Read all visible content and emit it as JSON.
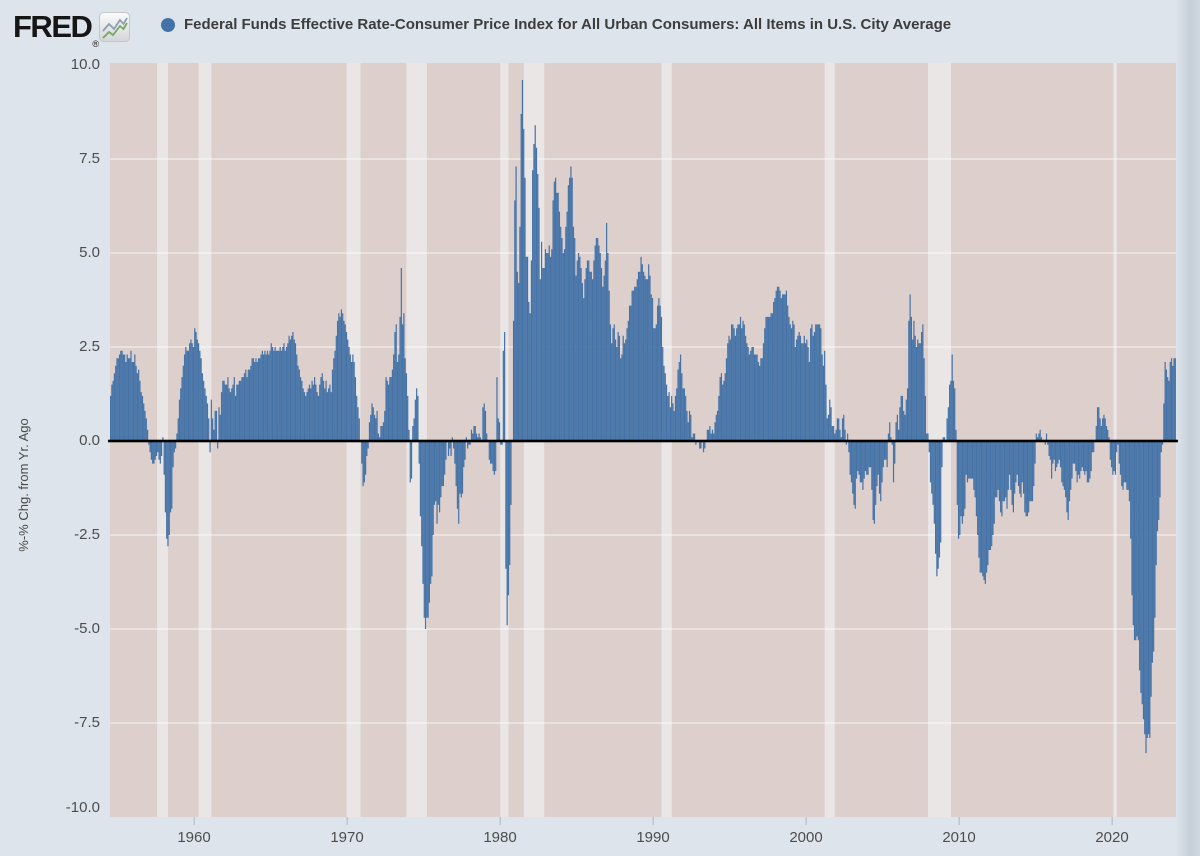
{
  "header": {
    "logo_text": "FRED",
    "registered_mark": "®",
    "series_title": "Federal Funds Effective Rate-Consumer Price Index for All Urban Consumers: All Items in U.S. City Average",
    "legend_dot_color": "#4573a7"
  },
  "colors": {
    "page_bg": "#dde4eb",
    "plot_bg": "#ddd0cc",
    "recession_band": "#e9e6e5",
    "gridline": "rgba(255,255,255,0.5)",
    "bar": "#4573a7",
    "zero_line": "#000000",
    "axis_text": "#4d4d4d",
    "tick_mark": "#b4bec8",
    "logo_line_gray": "#8ba0b3",
    "logo_line_green": "#74a85e"
  },
  "y_axis": {
    "title": "%-% Chg. from Yr. Ago",
    "tick_labels": [
      "10.0",
      "7.5",
      "5.0",
      "2.5",
      "0.0",
      "-2.5",
      "-5.0",
      "-7.5",
      "-10.0"
    ],
    "tick_values": [
      10,
      7.5,
      5,
      2.5,
      0,
      -2.5,
      -5,
      -7.5,
      -10
    ]
  },
  "x_axis": {
    "tick_labels": [
      "1960",
      "1970",
      "1980",
      "1990",
      "2000",
      "2010",
      "2020"
    ],
    "tick_years": [
      1960,
      1970,
      1980,
      1990,
      2000,
      2010,
      2020
    ]
  },
  "chart_data": {
    "type": "bar",
    "title": "Federal Funds Effective Rate-Consumer Price Index for All Urban Consumers: All Items in U.S. City Average",
    "ylabel": "%-% Chg. from Yr. Ago",
    "xlabel": "",
    "ylim": [
      -10,
      10
    ],
    "grid": "horizontal",
    "legend_position": "top-left",
    "frequency": "monthly",
    "start_date": "1954-07",
    "end_date": "2024-02",
    "zero_line": true,
    "recessions": [
      [
        1957.58,
        1958.29
      ],
      [
        1960.29,
        1961.12
      ],
      [
        1969.96,
        1970.87
      ],
      [
        1973.87,
        1975.21
      ],
      [
        1980.0,
        1980.54
      ],
      [
        1981.54,
        1982.87
      ],
      [
        1990.54,
        1991.21
      ],
      [
        2001.21,
        2001.87
      ],
      [
        2007.96,
        2009.46
      ],
      [
        2020.08,
        2020.29
      ]
    ],
    "values": [
      1.2,
      1.5,
      1.6,
      1.8,
      2.0,
      2.2,
      2.2,
      2.3,
      2.4,
      2.4,
      2.3,
      2.3,
      2.1,
      2.3,
      2.2,
      2.2,
      2.4,
      2.1,
      2.1,
      2.3,
      2.0,
      1.8,
      1.9,
      1.6,
      1.3,
      1.2,
      1.0,
      0.8,
      0.6,
      0.3,
      -0.1,
      -0.3,
      -0.5,
      -0.6,
      -0.6,
      -0.5,
      -0.4,
      -0.3,
      -0.5,
      -0.6,
      -0.4,
      0.1,
      -0.9,
      -1.9,
      -2.6,
      -2.8,
      -2.5,
      -1.9,
      -1.8,
      -0.7,
      -0.3,
      -0.2,
      0.2,
      0.6,
      1.1,
      1.4,
      1.7,
      2.0,
      2.3,
      2.5,
      2.4,
      2.4,
      2.6,
      2.7,
      2.6,
      2.5,
      3.0,
      2.9,
      2.7,
      2.6,
      2.4,
      2.2,
      1.8,
      1.6,
      1.4,
      1.2,
      1.0,
      0.6,
      -0.3,
      1.1,
      0.6,
      0.3,
      0.8,
      0.8,
      -0.2,
      0.9,
      0.7,
      1.3,
      1.6,
      1.6,
      1.5,
      1.5,
      1.7,
      1.4,
      1.3,
      1.4,
      1.5,
      1.7,
      1.2,
      1.5,
      1.5,
      1.6,
      1.6,
      1.7,
      1.7,
      1.8,
      1.9,
      1.7,
      1.9,
      1.9,
      2.0,
      2.2,
      2.2,
      2.1,
      2.2,
      2.1,
      2.2,
      2.2,
      2.3,
      2.4,
      2.3,
      2.4,
      2.3,
      2.4,
      2.3,
      2.4,
      2.6,
      2.5,
      2.4,
      2.5,
      2.4,
      2.4,
      2.4,
      2.5,
      2.4,
      2.5,
      2.6,
      2.4,
      2.5,
      2.6,
      2.8,
      2.7,
      2.8,
      2.9,
      2.7,
      2.6,
      2.3,
      2.0,
      1.9,
      1.7,
      1.6,
      1.4,
      1.3,
      1.2,
      1.3,
      1.4,
      1.5,
      1.4,
      1.6,
      1.5,
      1.7,
      1.5,
      1.3,
      1.2,
      1.5,
      1.7,
      1.8,
      1.6,
      1.4,
      1.6,
      1.3,
      1.4,
      1.5,
      1.3,
      1.9,
      2.2,
      2.4,
      2.8,
      3.2,
      3.4,
      3.3,
      3.5,
      3.4,
      3.2,
      3.1,
      2.9,
      2.7,
      2.5,
      2.3,
      2.1,
      2.3,
      2.1,
      1.7,
      1.2,
      0.9,
      0.6,
      0.0,
      -0.6,
      -1.2,
      -1.1,
      -0.9,
      -0.4,
      -0.2,
      0.5,
      0.7,
      1.0,
      0.9,
      0.7,
      0.6,
      0.8,
      0.2,
      0.1,
      0.4,
      0.4,
      0.5,
      0.8,
      1.7,
      1.6,
      1.5,
      1.7,
      1.7,
      1.9,
      2.3,
      2.9,
      3.1,
      2.1,
      2.3,
      3.3,
      4.6,
      3.1,
      3.4,
      2.2,
      1.8,
      1.2,
      0.3,
      -1.1,
      -1.0,
      0.4,
      0.6,
      1.1,
      1.4,
      1.2,
      -0.6,
      -2.0,
      -2.8,
      -3.8,
      -4.7,
      -5.0,
      -4.7,
      -4.7,
      -4.3,
      -3.8,
      -3.6,
      -2.5,
      -1.7,
      -1.6,
      -2.2,
      -1.7,
      -1.9,
      -1.5,
      -1.2,
      -1.2,
      -0.9,
      -0.5,
      0.0,
      -0.4,
      -0.2,
      -0.4,
      0.1,
      -0.2,
      -0.6,
      -1.2,
      -1.8,
      -2.2,
      -1.4,
      -1.5,
      -1.4,
      -0.7,
      -0.5,
      0.1,
      -0.2,
      -0.1,
      -0.1,
      0.3,
      0.2,
      0.4,
      0.4,
      0.2,
      0.1,
      0.2,
      0.1,
      0.0,
      0.9,
      1.0,
      0.8,
      0.2,
      0.0,
      -0.5,
      -0.6,
      -0.6,
      -0.8,
      -0.9,
      -0.8,
      1.7,
      0.6,
      0.5,
      -0.1,
      -0.1,
      2.4,
      2.9,
      -3.4,
      -4.9,
      -4.1,
      -3.3,
      -1.7,
      0.0,
      3.2,
      6.4,
      7.3,
      4.5,
      4.2,
      5.7,
      8.7,
      9.6,
      8.3,
      7.0,
      4.9,
      4.9,
      3.7,
      3.4,
      4.8,
      7.2,
      7.9,
      8.4,
      7.8,
      7.1,
      6.2,
      4.3,
      5.3,
      4.6,
      4.6,
      5.1,
      5.0,
      5.0,
      5.2,
      4.9,
      5.1,
      6.4,
      6.9,
      7.0,
      6.6,
      6.6,
      6.1,
      5.7,
      5.4,
      5.0,
      5.1,
      5.7,
      6.1,
      6.8,
      7.0,
      7.3,
      7.0,
      5.7,
      5.4,
      4.4,
      4.8,
      5.0,
      4.9,
      4.6,
      4.2,
      3.8,
      4.3,
      4.6,
      4.8,
      4.8,
      4.5,
      4.5,
      4.3,
      4.8,
      5.2,
      5.4,
      5.4,
      5.2,
      5.0,
      4.6,
      4.1,
      4.4,
      4.8,
      5.8,
      5.0,
      4.0,
      3.1,
      2.6,
      3.0,
      3.1,
      2.7,
      2.5,
      2.9,
      2.8,
      2.2,
      2.3,
      2.8,
      2.6,
      2.7,
      3.0,
      3.2,
      3.6,
      3.6,
      4.0,
      4.0,
      4.1,
      4.1,
      4.3,
      4.5,
      4.5,
      4.9,
      4.7,
      4.5,
      4.4,
      4.3,
      4.3,
      4.7,
      4.4,
      3.9,
      3.8,
      3.0,
      3.0,
      3.1,
      3.6,
      3.8,
      3.6,
      3.3,
      2.5,
      2.0,
      1.8,
      1.5,
      1.2,
      1.3,
      0.9,
      1.2,
      1.0,
      0.8,
      1.2,
      1.4,
      1.9,
      2.1,
      2.3,
      1.8,
      1.4,
      1.4,
      1.2,
      0.8,
      0.5,
      0.8,
      0.7,
      0.1,
      0.2,
      0.2,
      -0.1,
      0.0,
      0.0,
      -0.2,
      -0.2,
      0.0,
      -0.3,
      -0.2,
      0.0,
      0.3,
      0.3,
      0.4,
      0.2,
      0.3,
      0.2,
      0.5,
      0.7,
      0.8,
      1.2,
      1.7,
      1.8,
      1.5,
      1.6,
      1.8,
      2.2,
      2.6,
      2.8,
      2.7,
      3.1,
      3.1,
      3.0,
      2.8,
      3.0,
      3.1,
      3.1,
      3.3,
      3.0,
      3.2,
      3.1,
      2.8,
      2.6,
      2.5,
      2.3,
      2.4,
      2.5,
      2.5,
      2.3,
      2.3,
      2.3,
      2.1,
      2.0,
      2.2,
      2.2,
      2.6,
      3.0,
      3.3,
      3.3,
      3.3,
      3.3,
      3.4,
      3.4,
      3.7,
      3.8,
      4.0,
      4.1,
      4.1,
      4.0,
      3.8,
      3.9,
      3.9,
      3.9,
      4.0,
      3.6,
      3.3,
      3.1,
      3.0,
      3.2,
      3.1,
      2.5,
      2.7,
      2.8,
      2.9,
      2.8,
      2.6,
      2.6,
      2.8,
      2.6,
      2.7,
      2.5,
      2.1,
      3.0,
      3.1,
      2.8,
      2.9,
      3.1,
      3.1,
      3.1,
      3.1,
      3.0,
      2.3,
      2.0,
      2.4,
      1.5,
      0.6,
      0.7,
      1.1,
      0.9,
      0.4,
      0.4,
      0.2,
      0.3,
      0.6,
      0.6,
      0.3,
      0.1,
      0.6,
      0.7,
      0.3,
      -0.1,
      0.2,
      -0.3,
      -0.9,
      -1.1,
      -1.4,
      -1.7,
      -1.8,
      -1.0,
      -0.8,
      -0.9,
      -1.1,
      -1.1,
      -1.3,
      -1.0,
      -0.8,
      -0.9,
      -0.9,
      -0.7,
      -0.7,
      -1.3,
      -2.1,
      -2.2,
      -1.7,
      -1.2,
      -0.9,
      -1.4,
      -1.6,
      -1.1,
      -0.7,
      -0.5,
      -0.5,
      -0.7,
      0.2,
      0.5,
      0.1,
      -0.1,
      -1.1,
      -0.6,
      0.5,
      0.7,
      0.3,
      0.9,
      1.2,
      1.2,
      0.8,
      0.7,
      1.1,
      1.4,
      3.2,
      3.9,
      3.3,
      2.7,
      3.2,
      2.8,
      2.5,
      2.7,
      2.6,
      2.6,
      2.9,
      3.1,
      2.2,
      1.2,
      0.2,
      0.2,
      -0.3,
      -1.1,
      -1.4,
      -1.7,
      -2.2,
      -3.0,
      -3.6,
      -3.4,
      -3.1,
      -2.7,
      -0.7,
      0.1,
      0.1,
      0.0,
      0.6,
      0.9,
      1.5,
      1.6,
      2.3,
      1.6,
      1.4,
      0.3,
      -1.7,
      -2.6,
      -2.5,
      -2.0,
      -2.2,
      -2.0,
      -1.8,
      -0.9,
      -1.1,
      -1.0,
      -1.0,
      -1.0,
      -1.0,
      -1.3,
      -1.5,
      -2.0,
      -2.5,
      -3.1,
      -3.5,
      -3.5,
      -3.6,
      -3.7,
      -3.8,
      -3.5,
      -3.3,
      -2.9,
      -2.9,
      -2.8,
      -2.5,
      -2.2,
      -1.5,
      -1.5,
      -1.3,
      -1.6,
      -1.9,
      -2.0,
      -1.6,
      -1.6,
      -1.5,
      -1.8,
      -1.3,
      -0.9,
      -1.3,
      -1.7,
      -1.9,
      -1.4,
      -1.1,
      -0.9,
      -1.2,
      -1.4,
      -1.5,
      -1.1,
      -1.4,
      -1.9,
      -2.0,
      -2.0,
      -1.9,
      -1.6,
      -1.6,
      -1.6,
      -1.2,
      -0.6,
      0.2,
      0.1,
      0.2,
      0.3,
      0.1,
      0.0,
      0.0,
      -0.1,
      0.2,
      -0.1,
      -0.4,
      -0.5,
      -1.0,
      -0.6,
      -0.5,
      -0.8,
      -0.7,
      -0.6,
      -0.5,
      -0.7,
      -1.1,
      -1.2,
      -1.3,
      -1.5,
      -1.9,
      -2.1,
      -1.6,
      -1.3,
      -1.0,
      -0.6,
      -0.6,
      -0.8,
      -1.1,
      -0.9,
      -1.0,
      -0.8,
      -0.7,
      -0.8,
      -0.9,
      -0.8,
      -1.1,
      -1.1,
      -1.0,
      -0.8,
      -0.3,
      -0.3,
      0.0,
      0.4,
      0.9,
      0.9,
      0.6,
      0.4,
      0.6,
      0.7,
      0.6,
      0.4,
      0.3,
      0.1,
      -0.5,
      -0.7,
      -0.9,
      -0.8,
      -0.9,
      -0.3,
      -0.1,
      -0.6,
      -0.9,
      -1.2,
      -1.3,
      -1.1,
      -1.1,
      -1.3,
      -1.3,
      -1.6,
      -2.6,
      -4.1,
      -4.9,
      -5.3,
      -5.3,
      -5.2,
      -5.3,
      -6.1,
      -6.7,
      -7.0,
      -7.4,
      -7.8,
      -8.3,
      -7.9,
      -7.8,
      -7.9,
      -6.8,
      -5.9,
      -5.6,
      -4.7,
      -3.3,
      -2.4,
      -2.1,
      -1.5,
      -0.3,
      -0.1,
      1.0,
      2.1,
      1.9,
      1.7,
      1.6,
      2.1,
      2.2,
      2.0,
      2.2,
      2.2
    ]
  }
}
